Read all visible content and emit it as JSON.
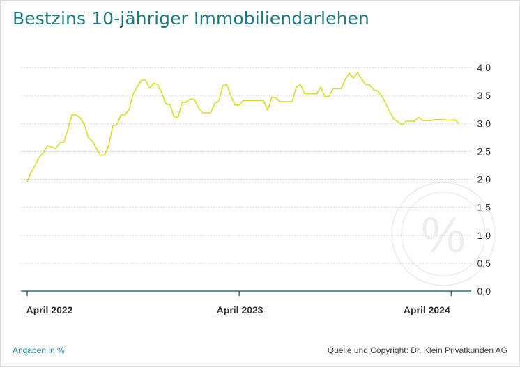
{
  "title": "Bestzins 10-jähriger Immobiliendarlehen",
  "footnote_left": "Angaben in %",
  "footnote_right": "Quelle und Copyright: Dr. Klein Privatkunden AG",
  "watermark": {
    "text": "%",
    "icon": "percent-circle-icon"
  },
  "colors": {
    "line": "#d8dc2a",
    "axis": "#1a7a7f",
    "title": "#1a7a7f",
    "grid": "#bdbdbd"
  },
  "chart_data": {
    "type": "line",
    "title": "Bestzins 10-jähriger Immobiliendarlehen",
    "xlabel": "",
    "ylabel": "",
    "ylim": [
      0,
      4
    ],
    "y_ticks": [
      "0,0",
      "0,5",
      "1,0",
      "1,5",
      "2,0",
      "2,5",
      "3,0",
      "3,5",
      "4,0"
    ],
    "x_ticks": [
      "April 2022",
      "April 2023",
      "April 2024"
    ],
    "x_tick_weeks": [
      0,
      52,
      104
    ],
    "grid": true,
    "series": [
      {
        "name": "",
        "values": [
          1.95,
          2.13,
          2.26,
          2.4,
          2.48,
          2.6,
          2.58,
          2.55,
          2.65,
          2.66,
          2.9,
          3.16,
          3.15,
          3.1,
          2.98,
          2.75,
          2.68,
          2.55,
          2.43,
          2.44,
          2.6,
          2.96,
          2.98,
          3.15,
          3.16,
          3.25,
          3.53,
          3.66,
          3.77,
          3.78,
          3.63,
          3.72,
          3.7,
          3.55,
          3.35,
          3.34,
          3.12,
          3.11,
          3.38,
          3.38,
          3.44,
          3.43,
          3.28,
          3.19,
          3.19,
          3.19,
          3.36,
          3.4,
          3.68,
          3.69,
          3.48,
          3.33,
          3.33,
          3.41,
          3.41,
          3.41,
          3.41,
          3.41,
          3.41,
          3.23,
          3.47,
          3.46,
          3.39,
          3.39,
          3.39,
          3.39,
          3.65,
          3.7,
          3.54,
          3.53,
          3.53,
          3.53,
          3.65,
          3.48,
          3.48,
          3.62,
          3.62,
          3.62,
          3.79,
          3.9,
          3.81,
          3.91,
          3.8,
          3.7,
          3.69,
          3.6,
          3.58,
          3.49,
          3.35,
          3.2,
          3.07,
          3.03,
          2.97,
          3.04,
          3.04,
          3.04,
          3.11,
          3.05,
          3.05,
          3.05,
          3.07,
          3.07,
          3.07,
          3.06,
          3.06,
          3.06,
          2.99
        ]
      }
    ]
  }
}
